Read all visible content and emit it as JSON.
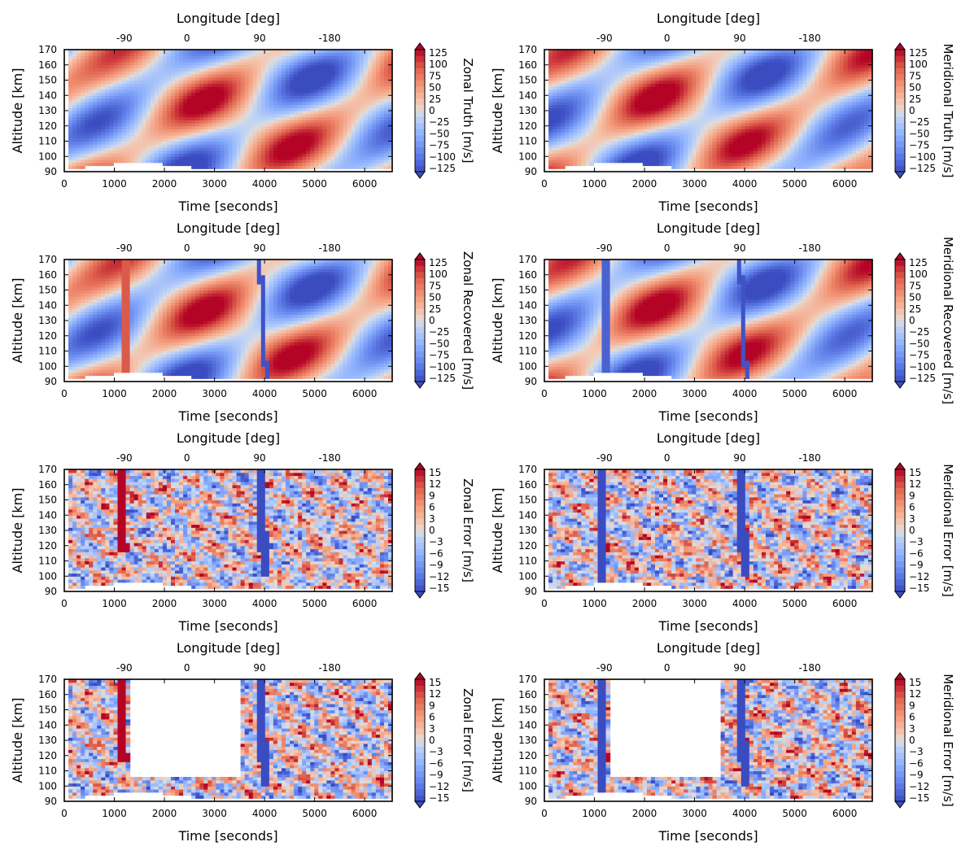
{
  "chart_data": [
    {
      "type": "heatmap",
      "component": "zonal",
      "colorbar_label": "Zonal Truth [m/s]",
      "colorbar_ticks": [
        "125",
        "100",
        "75",
        "50",
        "25",
        "0",
        "−25",
        "−50",
        "−75",
        "−100",
        "−125"
      ],
      "clim": [
        -125,
        125
      ],
      "colormap": "coolwarm",
      "xlabel": "Time [seconds]",
      "xticks": [
        "0",
        "1000",
        "2000",
        "3000",
        "4000",
        "5000",
        "6000"
      ],
      "xlim": [
        0,
        6550
      ],
      "x2label": "Longitude [deg]",
      "x2ticks": [
        "-90",
        "0",
        "90",
        "-180"
      ],
      "x2tick_time": [
        1200,
        2450,
        3900,
        5300
      ],
      "ylabel": "Altitude [km]",
      "yticks": [
        "90",
        "100",
        "110",
        "120",
        "130",
        "140",
        "150",
        "160",
        "170"
      ],
      "ylim": [
        90,
        170
      ],
      "pattern": "truth",
      "seed": 11
    },
    {
      "type": "heatmap",
      "component": "meridional",
      "colorbar_label": "Meridional Truth [m/s]",
      "colorbar_ticks": [
        "125",
        "100",
        "75",
        "50",
        "25",
        "0",
        "−25",
        "−50",
        "−75",
        "−100",
        "−125"
      ],
      "clim": [
        -125,
        125
      ],
      "colormap": "coolwarm",
      "xlabel": "Time [seconds]",
      "xticks": [
        "0",
        "1000",
        "2000",
        "3000",
        "4000",
        "5000",
        "6000"
      ],
      "xlim": [
        0,
        6550
      ],
      "x2label": "Longitude [deg]",
      "x2ticks": [
        "-90",
        "0",
        "90",
        "-180"
      ],
      "x2tick_time": [
        1200,
        2450,
        3900,
        5300
      ],
      "ylabel": "Altitude [km]",
      "yticks": [
        "90",
        "100",
        "110",
        "120",
        "130",
        "140",
        "150",
        "160",
        "170"
      ],
      "ylim": [
        90,
        170
      ],
      "pattern": "truth",
      "seed": 23
    },
    {
      "type": "heatmap",
      "component": "zonal",
      "colorbar_label": "Zonal Recovered [m/s]",
      "colorbar_ticks": [
        "125",
        "100",
        "75",
        "50",
        "25",
        "0",
        "−25",
        "−50",
        "−75",
        "−100",
        "−125"
      ],
      "clim": [
        -125,
        125
      ],
      "colormap": "coolwarm",
      "xlabel": "Time [seconds]",
      "xticks": [
        "0",
        "1000",
        "2000",
        "3000",
        "4000",
        "5000",
        "6000"
      ],
      "xlim": [
        0,
        6550
      ],
      "x2label": "Longitude [deg]",
      "x2ticks": [
        "-90",
        "0",
        "90",
        "-180"
      ],
      "x2tick_time": [
        1200,
        2450,
        3900,
        5300
      ],
      "ylabel": "Altitude [km]",
      "yticks": [
        "90",
        "100",
        "110",
        "120",
        "130",
        "140",
        "150",
        "160",
        "170"
      ],
      "ylim": [
        90,
        170
      ],
      "pattern": "recovered",
      "seed": 11
    },
    {
      "type": "heatmap",
      "component": "meridional",
      "colorbar_label": "Meridional Recovered [m/s]",
      "colorbar_ticks": [
        "125",
        "100",
        "75",
        "50",
        "25",
        "0",
        "−25",
        "−50",
        "−75",
        "−100",
        "−125"
      ],
      "clim": [
        -125,
        125
      ],
      "colormap": "coolwarm",
      "xlabel": "Time [seconds]",
      "xticks": [
        "0",
        "1000",
        "2000",
        "3000",
        "4000",
        "5000",
        "6000"
      ],
      "xlim": [
        0,
        6550
      ],
      "x2label": "Longitude [deg]",
      "x2ticks": [
        "-90",
        "0",
        "90",
        "-180"
      ],
      "x2tick_time": [
        1200,
        2450,
        3900,
        5300
      ],
      "ylabel": "Altitude [km]",
      "yticks": [
        "90",
        "100",
        "110",
        "120",
        "130",
        "140",
        "150",
        "160",
        "170"
      ],
      "ylim": [
        90,
        170
      ],
      "pattern": "recovered",
      "seed": 23
    },
    {
      "type": "heatmap",
      "component": "zonal",
      "colorbar_label": "Zonal Error [m/s]",
      "colorbar_ticks": [
        "15",
        "12",
        "9",
        "6",
        "3",
        "0",
        "−3",
        "−6",
        "−9",
        "−12",
        "−15"
      ],
      "clim": [
        -15,
        15
      ],
      "colormap": "coolwarm",
      "xlabel": "Time [seconds]",
      "xticks": [
        "0",
        "1000",
        "2000",
        "3000",
        "4000",
        "5000",
        "6000"
      ],
      "xlim": [
        0,
        6550
      ],
      "x2label": "Longitude [deg]",
      "x2ticks": [
        "-90",
        "0",
        "90",
        "-180"
      ],
      "x2tick_time": [
        1200,
        2450,
        3900,
        5300
      ],
      "ylabel": "Altitude [km]",
      "yticks": [
        "90",
        "100",
        "110",
        "120",
        "130",
        "140",
        "150",
        "160",
        "170"
      ],
      "ylim": [
        90,
        170
      ],
      "pattern": "error",
      "seed": 31
    },
    {
      "type": "heatmap",
      "component": "meridional",
      "colorbar_label": "Meridional Error [m/s]",
      "colorbar_ticks": [
        "15",
        "12",
        "9",
        "6",
        "3",
        "0",
        "−3",
        "−6",
        "−9",
        "−12",
        "−15"
      ],
      "clim": [
        -15,
        15
      ],
      "colormap": "coolwarm",
      "xlabel": "Time [seconds]",
      "xticks": [
        "0",
        "1000",
        "2000",
        "3000",
        "4000",
        "5000",
        "6000"
      ],
      "xlim": [
        0,
        6550
      ],
      "x2label": "Longitude [deg]",
      "x2ticks": [
        "-90",
        "0",
        "90",
        "-180"
      ],
      "x2tick_time": [
        1200,
        2450,
        3900,
        5300
      ],
      "ylabel": "Altitude [km]",
      "yticks": [
        "90",
        "100",
        "110",
        "120",
        "130",
        "140",
        "150",
        "160",
        "170"
      ],
      "ylim": [
        90,
        170
      ],
      "pattern": "error",
      "seed": 47
    },
    {
      "type": "heatmap",
      "component": "zonal",
      "colorbar_label": "Zonal Error [m/s]",
      "colorbar_ticks": [
        "15",
        "12",
        "9",
        "6",
        "3",
        "0",
        "−3",
        "−6",
        "−9",
        "−12",
        "−15"
      ],
      "clim": [
        -15,
        15
      ],
      "colormap": "coolwarm",
      "xlabel": "Time [seconds]",
      "xticks": [
        "0",
        "1000",
        "2000",
        "3000",
        "4000",
        "5000",
        "6000"
      ],
      "xlim": [
        0,
        6550
      ],
      "x2label": "Longitude [deg]",
      "x2ticks": [
        "-90",
        "0",
        "90",
        "-180"
      ],
      "x2tick_time": [
        1200,
        2450,
        3900,
        5300
      ],
      "ylabel": "Altitude [km]",
      "yticks": [
        "90",
        "100",
        "110",
        "120",
        "130",
        "140",
        "150",
        "160",
        "170"
      ],
      "ylim": [
        90,
        170
      ],
      "pattern": "error_masked",
      "seed": 31,
      "blank_region": {
        "time": [
          1350,
          3550
        ],
        "altitude_min": 105
      }
    },
    {
      "type": "heatmap",
      "component": "meridional",
      "colorbar_label": "Meridional Error [m/s]",
      "colorbar_ticks": [
        "15",
        "12",
        "9",
        "6",
        "3",
        "0",
        "−3",
        "−6",
        "−9",
        "−12",
        "−15"
      ],
      "clim": [
        -15,
        15
      ],
      "colormap": "coolwarm",
      "xlabel": "Time [seconds]",
      "xticks": [
        "0",
        "1000",
        "2000",
        "3000",
        "4000",
        "5000",
        "6000"
      ],
      "xlim": [
        0,
        6550
      ],
      "x2label": "Longitude [deg]",
      "x2ticks": [
        "-90",
        "0",
        "90",
        "-180"
      ],
      "x2tick_time": [
        1200,
        2450,
        3900,
        5300
      ],
      "ylabel": "Altitude [km]",
      "yticks": [
        "90",
        "100",
        "110",
        "120",
        "130",
        "140",
        "150",
        "160",
        "170"
      ],
      "ylim": [
        90,
        170
      ],
      "pattern": "error_masked",
      "seed": 47,
      "blank_region": {
        "time": [
          1350,
          3550
        ],
        "altitude_min": 105
      }
    }
  ]
}
